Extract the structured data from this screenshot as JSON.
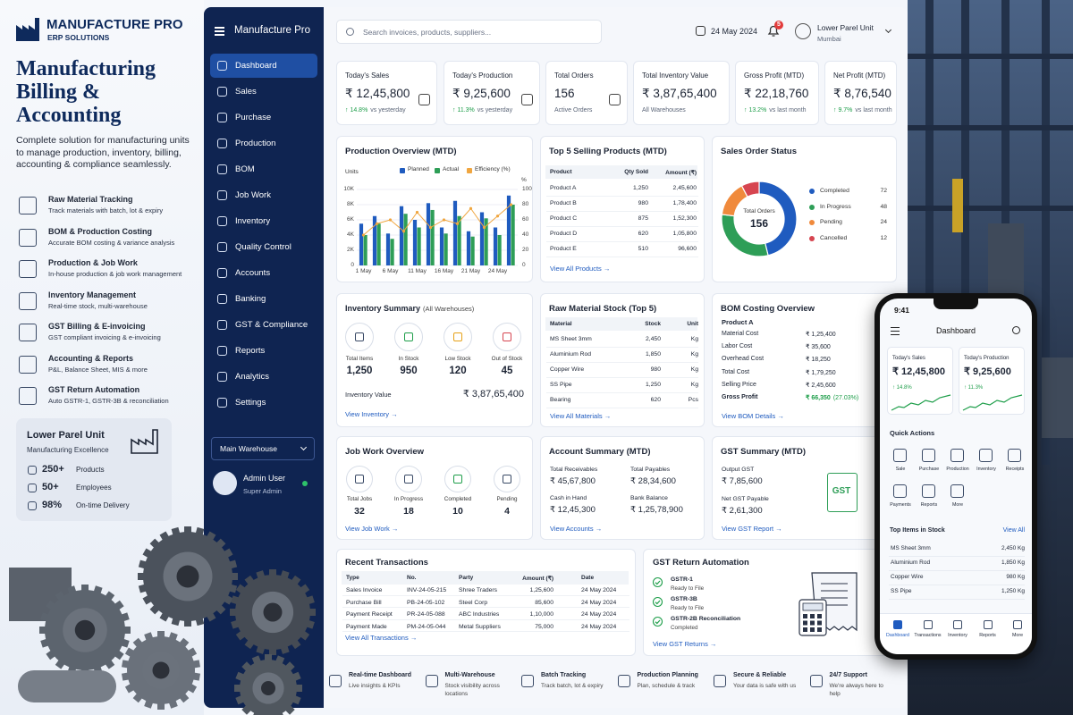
{
  "promo": {
    "brand": "MANUFACTURE PRO",
    "brand_sub": "ERP SOLUTIONS",
    "headline": "Manufacturing Billing & Accounting",
    "description": "Complete solution for manufacturing units to manage production, inventory, billing, accounting & compliance seamlessly.",
    "features": [
      {
        "title": "Raw Material Tracking",
        "desc": "Track materials with batch, lot & expiry"
      },
      {
        "title": "BOM & Production Costing",
        "desc": "Accurate BOM costing & variance analysis"
      },
      {
        "title": "Production & Job Work",
        "desc": "In-house production & job work management"
      },
      {
        "title": "Inventory Management",
        "desc": "Real-time stock, multi-warehouse"
      },
      {
        "title": "GST Billing & E-invoicing",
        "desc": "GST compliant invoicing & e-invoicing"
      },
      {
        "title": "Accounting & Reports",
        "desc": "P&L, Balance Sheet, MIS & more"
      },
      {
        "title": "GST Return Automation",
        "desc": "Auto GSTR-1, GSTR-3B & reconciliation"
      }
    ],
    "unit": {
      "name": "Lower Parel Unit",
      "tagline": "Manufacturing Excellence",
      "stats": [
        {
          "value": "250+",
          "label": "Products"
        },
        {
          "value": "50+",
          "label": "Employees"
        },
        {
          "value": "98%",
          "label": "On-time Delivery"
        }
      ]
    }
  },
  "sidebar": {
    "app": "Manufacture Pro",
    "menu": [
      "Dashboard",
      "Sales",
      "Purchase",
      "Production",
      "BOM",
      "Job Work",
      "Inventory",
      "Quality Control",
      "Accounts",
      "Banking",
      "GST & Compliance",
      "Reports",
      "Analytics",
      "Settings"
    ],
    "warehouse": "Main Warehouse",
    "user": {
      "name": "Admin User",
      "role": "Super Admin"
    }
  },
  "topbar": {
    "search": "Search invoices, products, suppliers...",
    "date": "24 May 2024",
    "notifications": "5",
    "location": "Lower Parel Unit",
    "city": "Mumbai"
  },
  "kpis": [
    {
      "label": "Today's Sales",
      "value": "₹ 12,45,800",
      "change": "↑ 14.8%",
      "note": "vs yesterday"
    },
    {
      "label": "Today's Production",
      "value": "₹ 9,25,600",
      "change": "↑ 11.3%",
      "note": "vs yesterday"
    },
    {
      "label": "Total Orders",
      "value": "156",
      "note": "Active Orders"
    },
    {
      "label": "Total Inventory Value",
      "value": "₹ 3,87,65,400",
      "note": "All Warehouses"
    },
    {
      "label": "Gross Profit (MTD)",
      "value": "₹ 22,18,760",
      "change": "↑ 13.2%",
      "note": "vs last month"
    },
    {
      "label": "Net Profit (MTD)",
      "value": "₹ 8,76,540",
      "change": "↑ 9.7%",
      "note": "vs last month"
    }
  ],
  "chart_data": [
    {
      "type": "bar",
      "title": "Production Overview (MTD)",
      "y_label": "Units",
      "y2_label": "%",
      "categories": [
        "1 May",
        null,
        "6 May",
        null,
        "11 May",
        null,
        "16 May",
        null,
        "21 May",
        null,
        "24 May",
        null
      ],
      "series": [
        {
          "name": "Planned",
          "color": "#1f5bbf",
          "values": [
            5500,
            6500,
            4200,
            7800,
            6000,
            8200,
            5000,
            8500,
            4500,
            7000,
            5000,
            9200
          ]
        },
        {
          "name": "Actual",
          "color": "#2e9e57",
          "values": [
            4000,
            5500,
            3500,
            6800,
            5000,
            7300,
            4200,
            6500,
            3800,
            6200,
            4000,
            8000
          ]
        },
        {
          "name": "Efficiency (%)",
          "color": "#f0a640",
          "type": "line",
          "axis": "y2",
          "values": [
            40,
            55,
            60,
            45,
            70,
            50,
            60,
            55,
            75,
            50,
            65,
            80
          ]
        }
      ],
      "ylim": [
        0,
        10000
      ],
      "yticks": [
        0,
        {
          "value": 2000,
          "label": "2K"
        },
        {
          "value": 4000,
          "label": "4K"
        },
        {
          "value": 6000,
          "label": "6K"
        },
        {
          "value": 8000,
          "label": "8K"
        },
        {
          "value": 10000,
          "label": "10K"
        }
      ],
      "y2lim": [
        0,
        100
      ],
      "y2ticks": [
        0,
        20,
        40,
        60,
        80,
        100
      ],
      "grid": true,
      "legend": "top"
    },
    {
      "type": "pie",
      "donut": true,
      "title": "Sales Order Status",
      "center_label": "Total Orders",
      "center_value": 156,
      "categories": [
        "Completed",
        "In Progress",
        "Pending",
        "Cancelled"
      ],
      "values": [
        72,
        48,
        24,
        12
      ],
      "colors": [
        "#1f5bbf",
        "#2e9e57",
        "#f08a3c",
        "#d64550"
      ],
      "legend": "right"
    }
  ],
  "top_products": {
    "title": "Top 5 Selling Products (MTD)",
    "header": [
      "Product",
      "Qty Sold",
      "Amount (₹)"
    ],
    "rows": [
      [
        "Product A",
        "1,250",
        "2,45,600"
      ],
      [
        "Product B",
        "980",
        "1,78,400"
      ],
      [
        "Product C",
        "875",
        "1,52,300"
      ],
      [
        "Product D",
        "620",
        "1,05,800"
      ],
      [
        "Product E",
        "510",
        "96,600"
      ]
    ],
    "link": "View All Products →"
  },
  "inventory": {
    "title": "Inventory Summary",
    "subtitle": "(All Warehouses)",
    "items": [
      {
        "label": "Total Items",
        "value": "1,250"
      },
      {
        "label": "In Stock",
        "value": "950"
      },
      {
        "label": "Low Stock",
        "value": "120"
      },
      {
        "label": "Out of Stock",
        "value": "45"
      }
    ],
    "value_label": "Inventory Value",
    "value": "₹ 3,87,65,400",
    "link": "View Inventory →"
  },
  "raw_material": {
    "title": "Raw Material Stock (Top 5)",
    "header": [
      "Material",
      "Stock",
      "Unit"
    ],
    "rows": [
      [
        "MS Sheet 3mm",
        "2,450",
        "Kg"
      ],
      [
        "Aluminium Rod",
        "1,850",
        "Kg"
      ],
      [
        "Copper Wire",
        "980",
        "Kg"
      ],
      [
        "SS Pipe",
        "1,250",
        "Kg"
      ],
      [
        "Bearing",
        "620",
        "Pcs"
      ]
    ],
    "link": "View All Materials →"
  },
  "bom": {
    "title": "BOM Costing Overview",
    "product": "Product A",
    "rows": [
      [
        "Material Cost",
        "₹ 1,25,400"
      ],
      [
        "Labor Cost",
        "₹ 35,600"
      ],
      [
        "Overhead Cost",
        "₹ 18,250"
      ],
      [
        "Total Cost",
        "₹ 1,79,250"
      ],
      [
        "Selling Price",
        "₹ 2,45,600"
      ],
      [
        "Gross Profit",
        "₹ 66,350",
        "(27.03%)"
      ]
    ],
    "link": "View BOM Details →"
  },
  "job_work": {
    "title": "Job Work Overview",
    "items": [
      {
        "label": "Total Jobs",
        "value": "32"
      },
      {
        "label": "In Progress",
        "value": "18"
      },
      {
        "label": "Completed",
        "value": "10"
      },
      {
        "label": "Pending",
        "value": "4"
      }
    ],
    "link": "View Job Work →"
  },
  "accounts": {
    "title": "Account Summary (MTD)",
    "items": [
      {
        "label": "Total Receivables",
        "value": "₹ 45,67,800"
      },
      {
        "label": "Total Payables",
        "value": "₹ 28,34,600"
      },
      {
        "label": "Cash in Hand",
        "value": "₹ 12,45,300"
      },
      {
        "label": "Bank Balance",
        "value": "₹ 1,25,78,900"
      }
    ],
    "link": "View Accounts →"
  },
  "gst_summary": {
    "title": "GST Summary (MTD)",
    "items": [
      {
        "label": "Output GST",
        "value": "₹ 7,85,600"
      },
      {
        "label": "Net GST Payable",
        "value": "₹ 2,61,300"
      }
    ],
    "icon_text": "GST",
    "link": "View GST Report →"
  },
  "transactions": {
    "title": "Recent Transactions",
    "header": [
      "Type",
      "No.",
      "Party",
      "Amount (₹)",
      "Date"
    ],
    "rows": [
      [
        "Sales Invoice",
        "INV-24-05-215",
        "Shree Traders",
        "1,25,600",
        "24 May 2024"
      ],
      [
        "Purchase Bill",
        "PB-24-05-102",
        "Steel Corp",
        "85,600",
        "24 May 2024"
      ],
      [
        "Payment Receipt",
        "PR-24-05-088",
        "ABC Industries",
        "1,10,000",
        "24 May 2024"
      ],
      [
        "Payment Made",
        "PM-24-05-044",
        "Metal Suppliers",
        "75,000",
        "24 May 2024"
      ]
    ],
    "link": "View All Transactions →"
  },
  "gst_returns": {
    "title": "GST Return Automation",
    "items": [
      {
        "name": "GSTR-1",
        "status": "Ready to File"
      },
      {
        "name": "GSTR-3B",
        "status": "Ready to File"
      },
      {
        "name": "GSTR-2B Reconciliation",
        "status": "Completed"
      }
    ],
    "link": "View GST Returns →"
  },
  "footer": [
    {
      "title": "Real-time Dashboard",
      "desc": "Live insights & KPIs"
    },
    {
      "title": "Multi-Warehouse",
      "desc": "Stock visibility across locations"
    },
    {
      "title": "Batch Tracking",
      "desc": "Track batch, lot & expiry"
    },
    {
      "title": "Production Planning",
      "desc": "Plan, schedule & track"
    },
    {
      "title": "Secure & Reliable",
      "desc": "Your data is safe with us"
    },
    {
      "title": "24/7 Support",
      "desc": "We're always here to help"
    }
  ],
  "phone": {
    "time": "9:41",
    "title": "Dashboard",
    "cards": [
      {
        "label": "Today's Sales",
        "value": "₹ 12,45,800",
        "change": "↑ 14.8%"
      },
      {
        "label": "Today's Production",
        "value": "₹ 9,25,600",
        "change": "↑ 11.3%"
      }
    ],
    "quick_title": "Quick Actions",
    "actions": [
      "Sale",
      "Purchase",
      "Production",
      "Inventory",
      "Receipts",
      "Payments",
      "Reports",
      "More"
    ],
    "stock_title": "Top Items in Stock",
    "stock_link": "View All",
    "stock": [
      {
        "name": "MS Sheet 3mm",
        "qty": "2,450 Kg"
      },
      {
        "name": "Aluminium Rod",
        "qty": "1,850 Kg"
      },
      {
        "name": "Copper Wire",
        "qty": "980 Kg"
      },
      {
        "name": "SS Pipe",
        "qty": "1,250 Kg"
      }
    ],
    "nav": [
      "Dashboard",
      "Transactions",
      "Inventory",
      "Reports",
      "More"
    ]
  }
}
